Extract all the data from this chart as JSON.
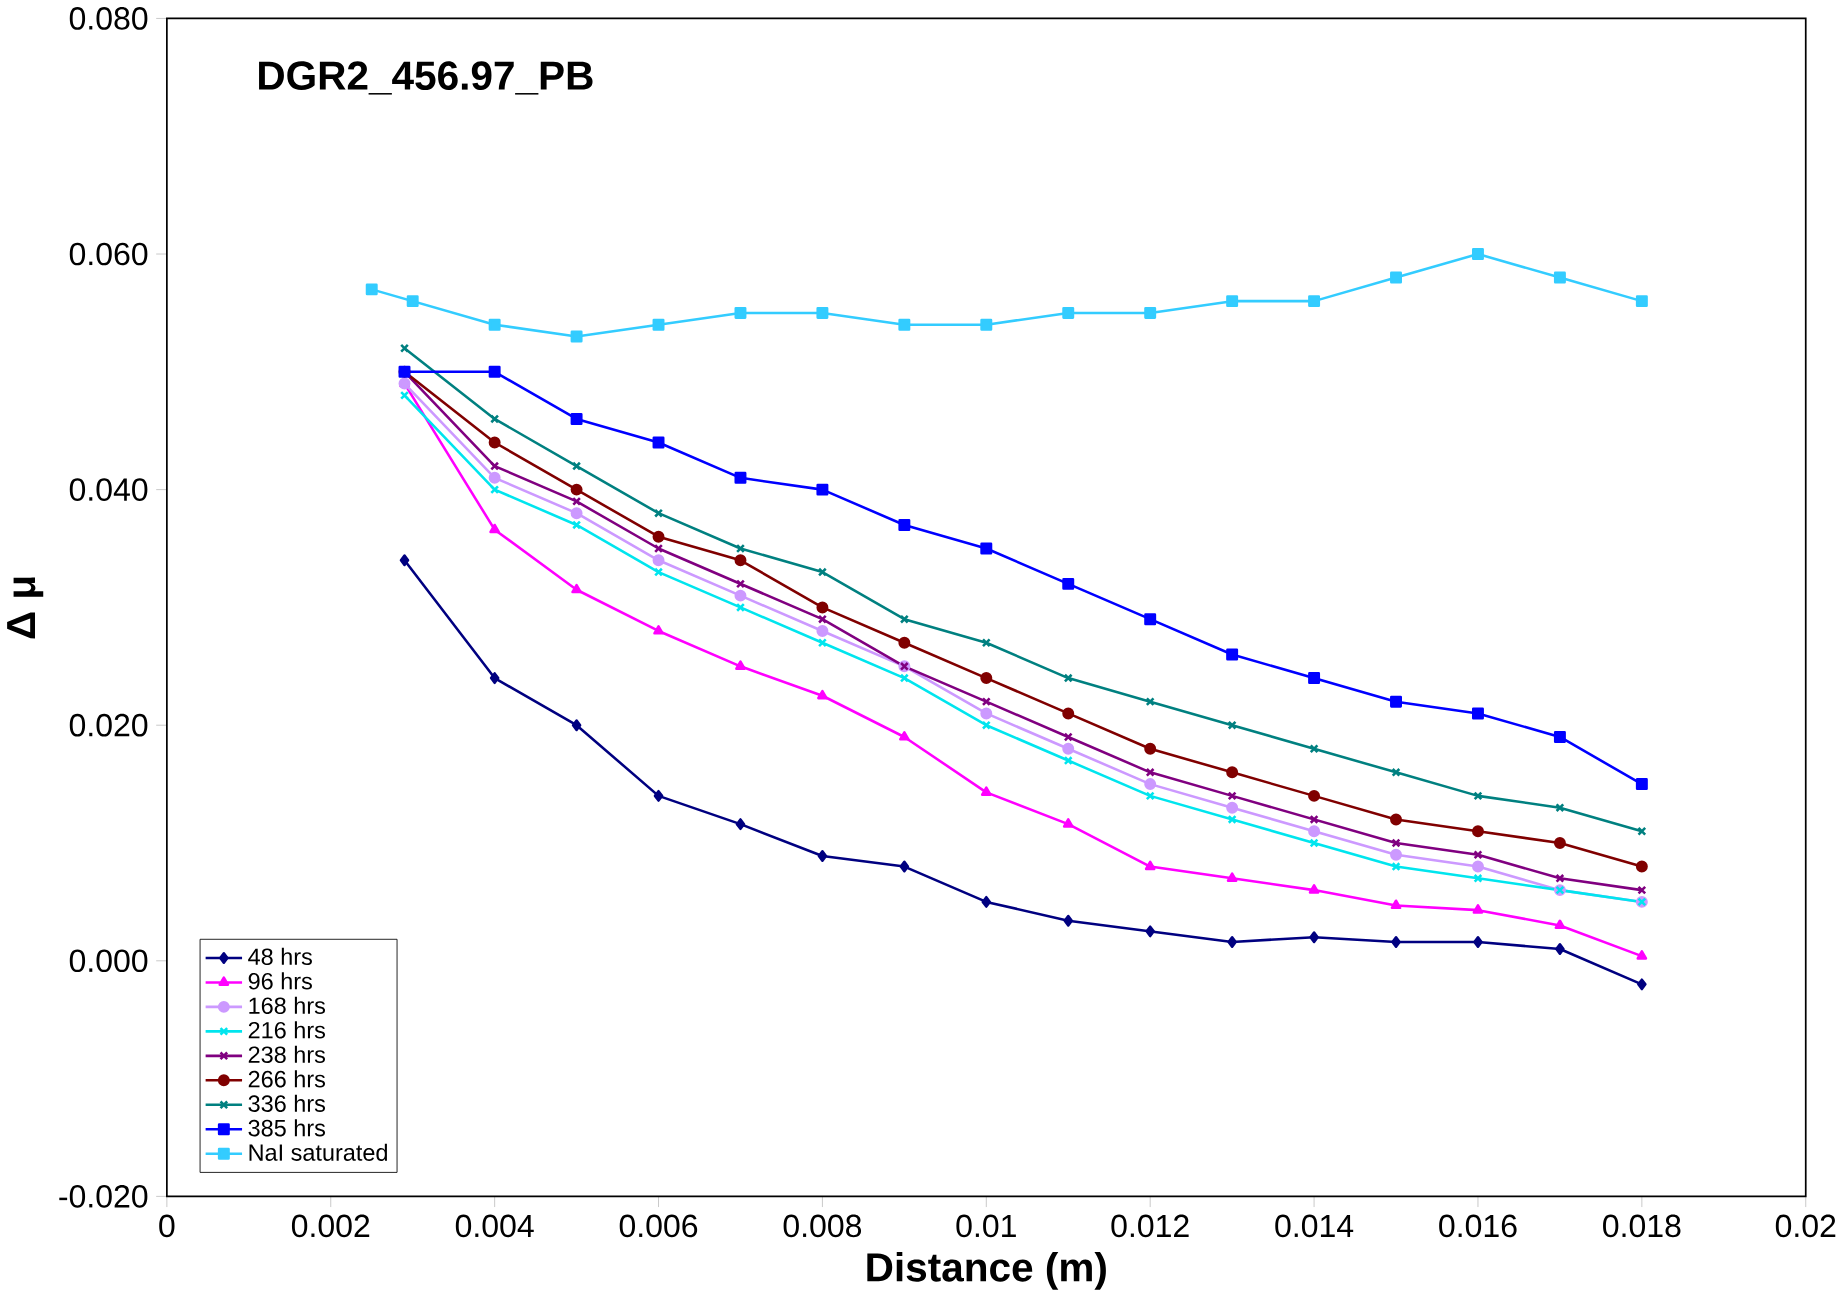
{
  "chart_data": {
    "type": "line",
    "title": "DGR2_456.97_PB",
    "xlabel": "Distance (m)",
    "ylabel": "Δ μ",
    "xlim": [
      0,
      0.02
    ],
    "xticks": [
      0,
      0.002,
      0.004,
      0.006,
      0.008,
      0.01,
      0.012,
      0.014,
      0.016,
      0.018,
      0.02
    ],
    "ylim": [
      -0.02,
      0.08
    ],
    "yticks": [
      {
        "value": -0.02,
        "label": "-0.020"
      },
      {
        "value": 0,
        "label": "0.000"
      },
      {
        "value": 0.02,
        "label": "0.020"
      },
      {
        "value": 0.04,
        "label": "0.040"
      },
      {
        "value": 0.06,
        "label": "0.060"
      },
      {
        "value": 0.08,
        "label": "0.080"
      }
    ],
    "grid": false,
    "legend": "bottom left",
    "x": [
      0.0029,
      0.004,
      0.005,
      0.006,
      0.007,
      0.008,
      0.009,
      0.01,
      0.011,
      0.012,
      0.013,
      0.014,
      0.015,
      0.016,
      0.017,
      0.018
    ],
    "series": [
      {
        "name": "48 hrs",
        "color": "#000080",
        "marker": "diamond",
        "values": [
          0.034,
          0.024,
          0.02,
          0.014,
          0.0116,
          0.0089,
          0.008,
          0.005,
          0.0034,
          0.0025,
          0.0016,
          0.002,
          0.0016,
          0.0016,
          0.001,
          -0.002
        ]
      },
      {
        "name": "96 hrs",
        "color": "#ff00ff",
        "marker": "triangle",
        "values": [
          0.049,
          0.0366,
          0.0315,
          0.028,
          0.025,
          0.0225,
          0.019,
          0.0143,
          0.0116,
          0.008,
          0.007,
          0.006,
          0.0047,
          0.0043,
          0.003,
          0.0004
        ]
      },
      {
        "name": "168 hrs",
        "color": "#cc99ff",
        "marker": "circle",
        "values": [
          0.049,
          0.041,
          0.038,
          0.034,
          0.031,
          0.028,
          0.025,
          0.021,
          0.018,
          0.015,
          0.013,
          0.011,
          0.009,
          0.008,
          0.006,
          0.005
        ]
      },
      {
        "name": "216 hrs",
        "color": "#00e5ee",
        "marker": "cross",
        "values": [
          0.048,
          0.04,
          0.037,
          0.033,
          0.03,
          0.027,
          0.024,
          0.02,
          0.017,
          0.014,
          0.012,
          0.01,
          0.008,
          0.007,
          0.006,
          0.005
        ]
      },
      {
        "name": "238 hrs",
        "color": "#800080",
        "marker": "cross",
        "values": [
          0.05,
          0.042,
          0.039,
          0.035,
          0.032,
          0.029,
          0.025,
          0.022,
          0.019,
          0.016,
          0.014,
          0.012,
          0.01,
          0.009,
          0.007,
          0.006
        ]
      },
      {
        "name": "266 hrs",
        "color": "#800000",
        "marker": "circle",
        "values": [
          0.05,
          0.044,
          0.04,
          0.036,
          0.034,
          0.03,
          0.027,
          0.024,
          0.021,
          0.018,
          0.016,
          0.014,
          0.012,
          0.011,
          0.01,
          0.008
        ]
      },
      {
        "name": "336 hrs",
        "color": "#008080",
        "marker": "cross",
        "values": [
          0.052,
          0.046,
          0.042,
          0.038,
          0.035,
          0.033,
          0.029,
          0.027,
          0.024,
          0.022,
          0.02,
          0.018,
          0.016,
          0.014,
          0.013,
          0.011
        ]
      },
      {
        "name": "385 hrs",
        "color": "#0000ff",
        "marker": "square",
        "values": [
          0.05,
          0.05,
          0.046,
          0.044,
          0.041,
          0.04,
          0.037,
          0.035,
          0.032,
          0.029,
          0.026,
          0.024,
          0.022,
          0.021,
          0.019,
          0.015
        ]
      },
      {
        "name": "NaI saturated",
        "color": "#33ccff",
        "marker": "square",
        "x": [
          0.0025,
          0.003,
          0.004,
          0.005,
          0.006,
          0.007,
          0.008,
          0.009,
          0.01,
          0.011,
          0.012,
          0.013,
          0.014,
          0.015,
          0.016,
          0.017,
          0.018
        ],
        "values": [
          0.057,
          0.056,
          0.054,
          0.053,
          0.054,
          0.055,
          0.055,
          0.054,
          0.054,
          0.055,
          0.055,
          0.056,
          0.056,
          0.058,
          0.06,
          0.058,
          0.056
        ]
      }
    ]
  }
}
